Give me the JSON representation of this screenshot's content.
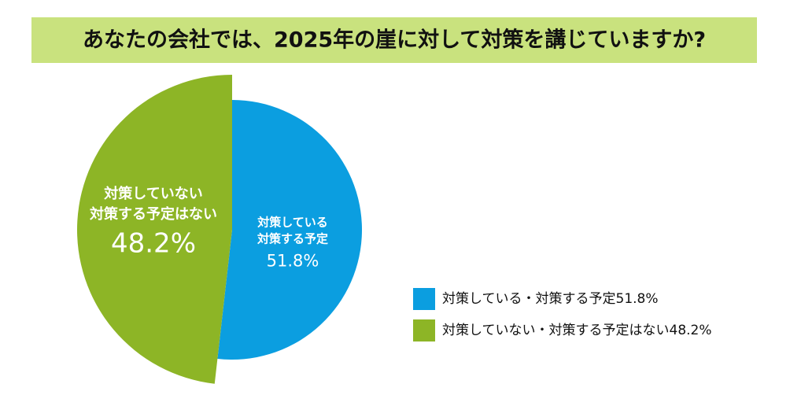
{
  "chart_data": {
    "type": "pie",
    "title": "あなたの会社では、2025年の崖に対して対策を講じていますか?",
    "categories": [
      "対策している・対策する予定",
      "対策していない・対策する予定はない"
    ],
    "slice_labels": [
      [
        "対策している",
        "対策する予定"
      ],
      [
        "対策していない",
        "対策する予定はない"
      ]
    ],
    "values": [
      51.8,
      48.2
    ],
    "value_labels": [
      "51.8%",
      "48.2%"
    ],
    "colors": [
      "#0b9ee0",
      "#8db526"
    ]
  }
}
